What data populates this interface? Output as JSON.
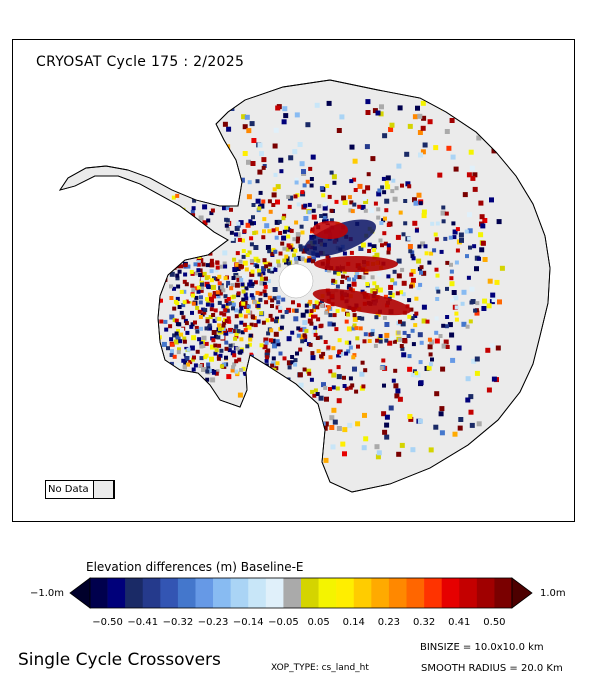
{
  "map": {
    "title": "CRYOSAT Cycle 175 : 2/2025",
    "legend_label": "No Data",
    "no_data_color": "#ebebeb",
    "region": "Antarctica"
  },
  "colorbar": {
    "title": "Elevation differences (m) Baseline-E",
    "min_label": "−1.0m",
    "max_label": "1.0m",
    "ticks": [
      "−0.50",
      "−0.41",
      "−0.32",
      "−0.23",
      "−0.14",
      "−0.05",
      "0.05",
      "0.14",
      "0.23",
      "0.32",
      "0.41",
      "0.50"
    ],
    "colors": [
      "#00004d",
      "#00007a",
      "#1a2a66",
      "#253a8c",
      "#3355b3",
      "#4477cc",
      "#6699e6",
      "#88bbf2",
      "#aad4f5",
      "#c8e6f8",
      "#e0f0fa",
      "#aaaaaa",
      "#d4d400",
      "#f4f400",
      "#ffee00",
      "#ffcc00",
      "#ffaa00",
      "#ff8800",
      "#ff6600",
      "#ff3300",
      "#e60000",
      "#c40000",
      "#a00000",
      "#7a0000"
    ],
    "under_color": "#00002b",
    "over_color": "#4d0000"
  },
  "footer": {
    "title": "Single Cycle Crossovers",
    "binsize": "BINSIZE  =  10.0x10.0  km",
    "xop_type": "XOP_TYPE:  cs_land_ht",
    "smooth_radius": "SMOOTH  RADIUS  =   20.0  Km"
  }
}
